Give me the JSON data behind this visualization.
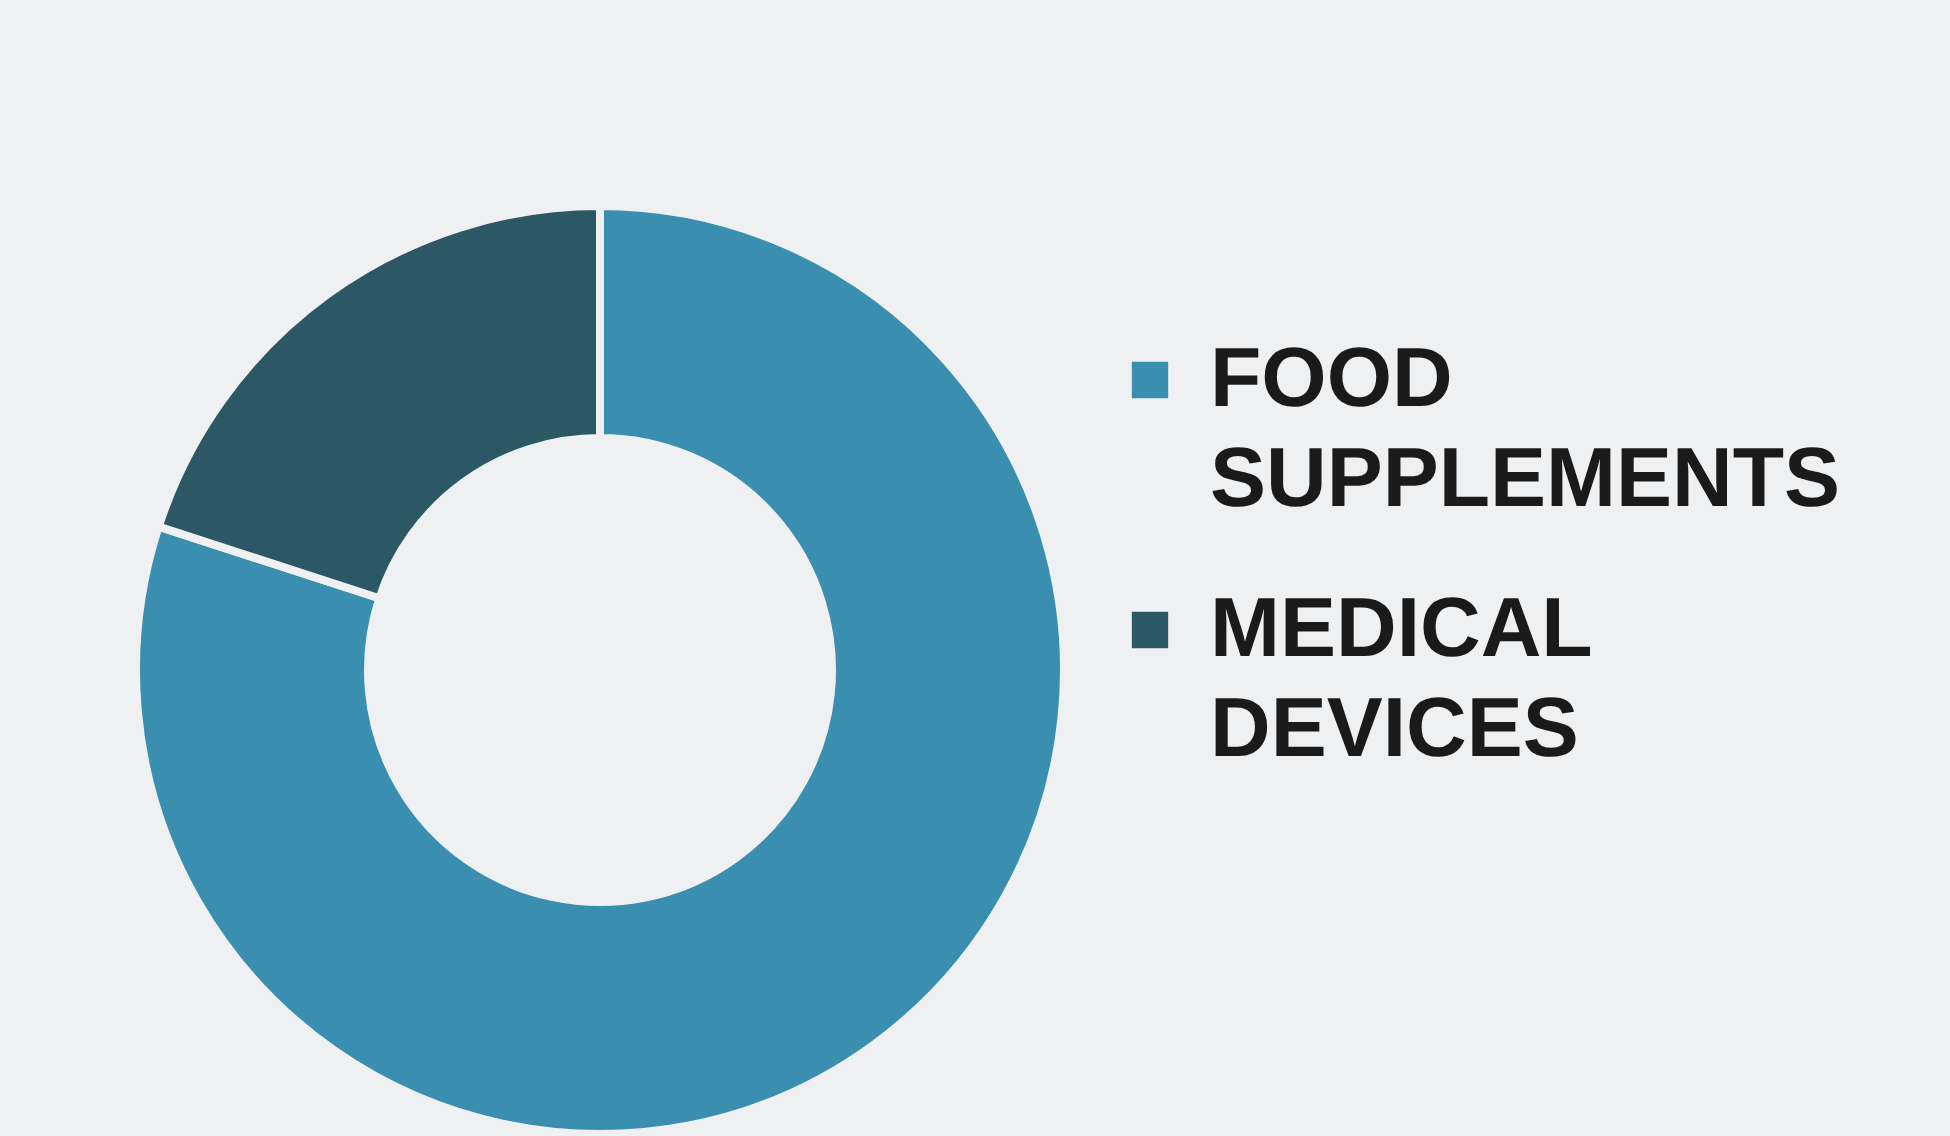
{
  "chart_data": {
    "type": "donut",
    "categories": [
      "FOOD SUPPLEMENTS",
      "MEDICAL DEVICES"
    ],
    "values": [
      80,
      20
    ],
    "colors": [
      "#3a8eb0",
      "#2c5866"
    ],
    "legend": "right"
  }
}
